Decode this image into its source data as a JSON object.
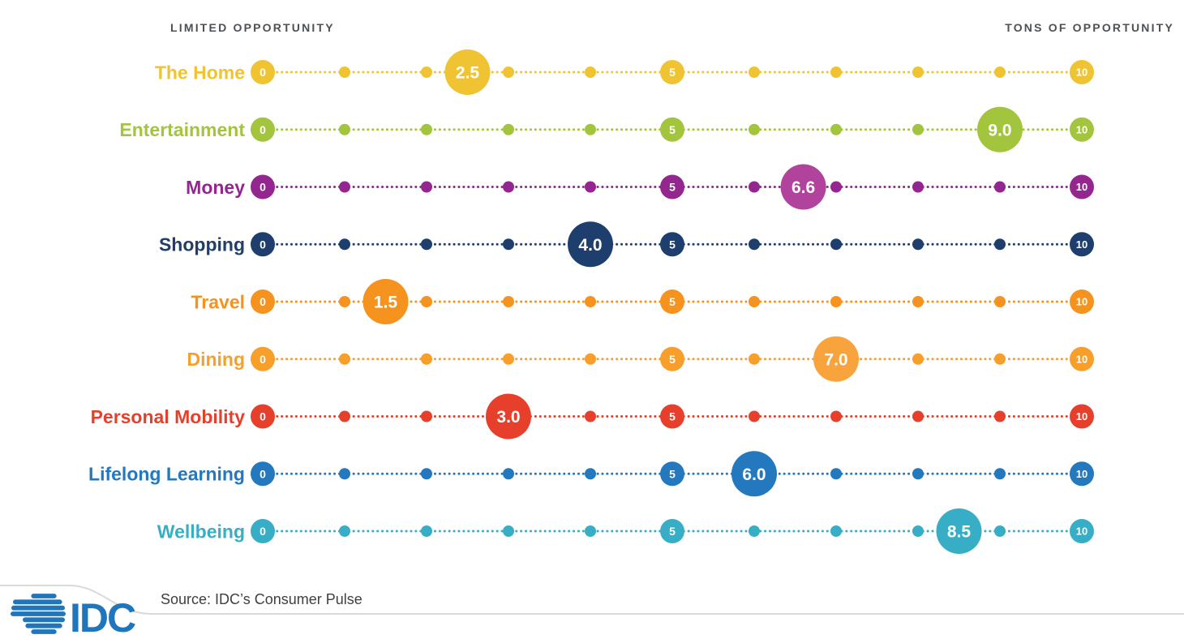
{
  "header": {
    "left_label": "LIMITED OPPORTUNITY",
    "right_label": "TONS OF OPPORTUNITY",
    "text_color": "#4C5156"
  },
  "source": {
    "text": "Source: IDC’s Consumer Pulse"
  },
  "logo": {
    "text": "IDC",
    "color": "#2076BC"
  },
  "chart_data": {
    "type": "scatter",
    "subtype": "dot-plot-scale",
    "title": "",
    "xlabel_left": "LIMITED OPPORTUNITY",
    "xlabel_right": "TONS OF OPPORTUNITY",
    "scale": {
      "min": 0,
      "max": 10,
      "labeled_ticks": [
        0,
        5,
        10
      ],
      "minor_ticks": [
        1,
        2,
        3,
        4,
        6,
        7,
        8,
        9
      ],
      "grid": false
    },
    "rows": [
      {
        "label": "The Home",
        "value": 2.5,
        "display": "2.5",
        "color": "#F0C333",
        "bubble_color": "#F0C333"
      },
      {
        "label": "Entertainment",
        "value": 9.0,
        "display": "9.0",
        "color": "#A3C53D",
        "bubble_color": "#A3C53D"
      },
      {
        "label": "Money",
        "value": 6.6,
        "display": "6.6",
        "color": "#93278F",
        "bubble_color": "#B2439C"
      },
      {
        "label": "Shopping",
        "value": 4.0,
        "display": "4.0",
        "color": "#1E3F6E",
        "bubble_color": "#1E3F6E"
      },
      {
        "label": "Travel",
        "value": 1.5,
        "display": "1.5",
        "color": "#F6921E",
        "bubble_color": "#F6921E"
      },
      {
        "label": "Dining",
        "value": 7.0,
        "display": "7.0",
        "color": "#F89E2B",
        "bubble_color": "#F9A33C"
      },
      {
        "label": "Personal Mobility",
        "value": 3.0,
        "display": "3.0",
        "color": "#E6402C",
        "bubble_color": "#E6402C"
      },
      {
        "label": "Lifelong Learning",
        "value": 6.0,
        "display": "6.0",
        "color": "#2378BE",
        "bubble_color": "#2378BE"
      },
      {
        "label": "Wellbeing",
        "value": 8.5,
        "display": "8.5",
        "color": "#37AEC6",
        "bubble_color": "#37AEC6"
      }
    ],
    "legend": null,
    "annotations": []
  }
}
